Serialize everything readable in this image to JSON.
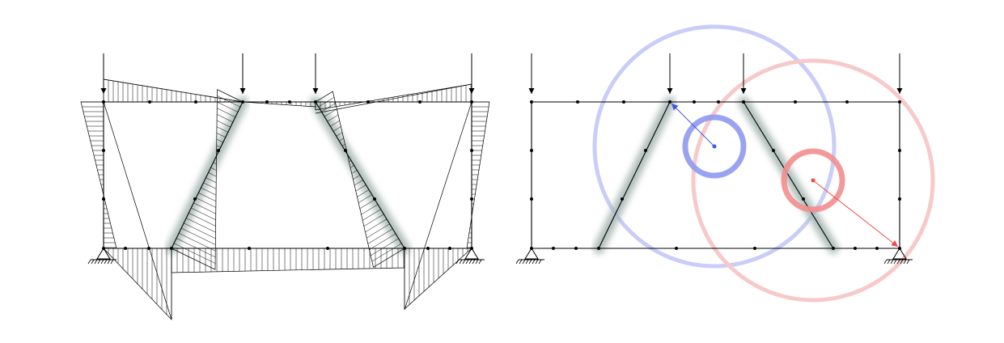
{
  "figure": {
    "panels": [
      {
        "id": "left",
        "content": "frame-with-moment-diagram"
      },
      {
        "id": "right",
        "content": "frame-with-circles"
      }
    ]
  },
  "style": {
    "member_color": "#000000",
    "glow_color": "#a8b8b4",
    "hatch_color": "#000000",
    "blue_color": "#3f55e6",
    "red_color": "#ef4a4a",
    "ring_blue_light": "#c9cdf8",
    "ring_red_light": "#f8c9c9"
  },
  "icons": {
    "load": "down-arrow-icon",
    "support": "pin-support-icon",
    "node": "node-dot-icon"
  }
}
